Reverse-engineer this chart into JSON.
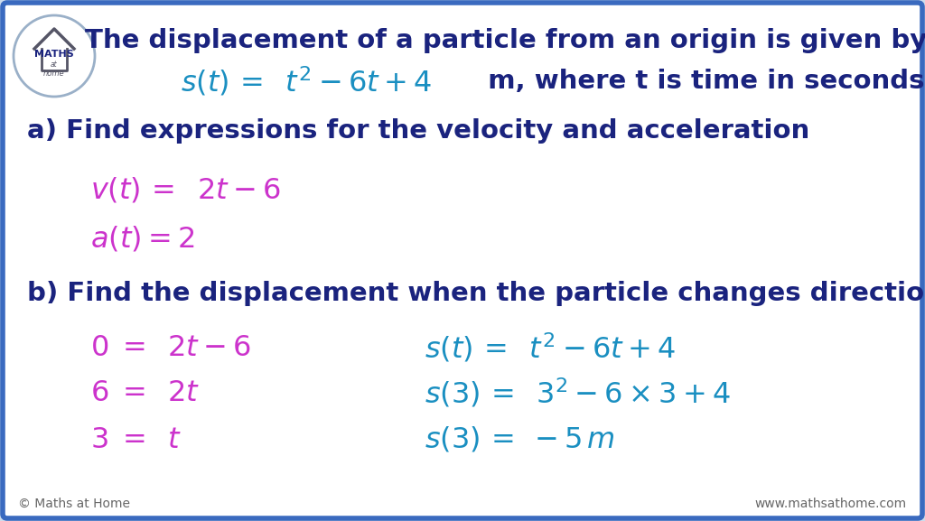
{
  "bg_color": "#cddcec",
  "panel_color": "#ffffff",
  "dark_blue": "#1a237e",
  "cyan_blue": "#1a8fc1",
  "magenta": "#cc33cc",
  "border_color": "#3a6abf",
  "footer_color": "#666666",
  "title_line1": "The displacement of a particle from an origin is given by",
  "part_a": "a) Find expressions for the velocity and acceleration",
  "part_b": "b) Find the displacement when the particle changes direction",
  "footer_left": "© Maths at Home",
  "footer_right": "www.mathsathome.com",
  "fs_title": 21,
  "fs_part": 21,
  "fs_eq": 21,
  "fs_footer": 10
}
